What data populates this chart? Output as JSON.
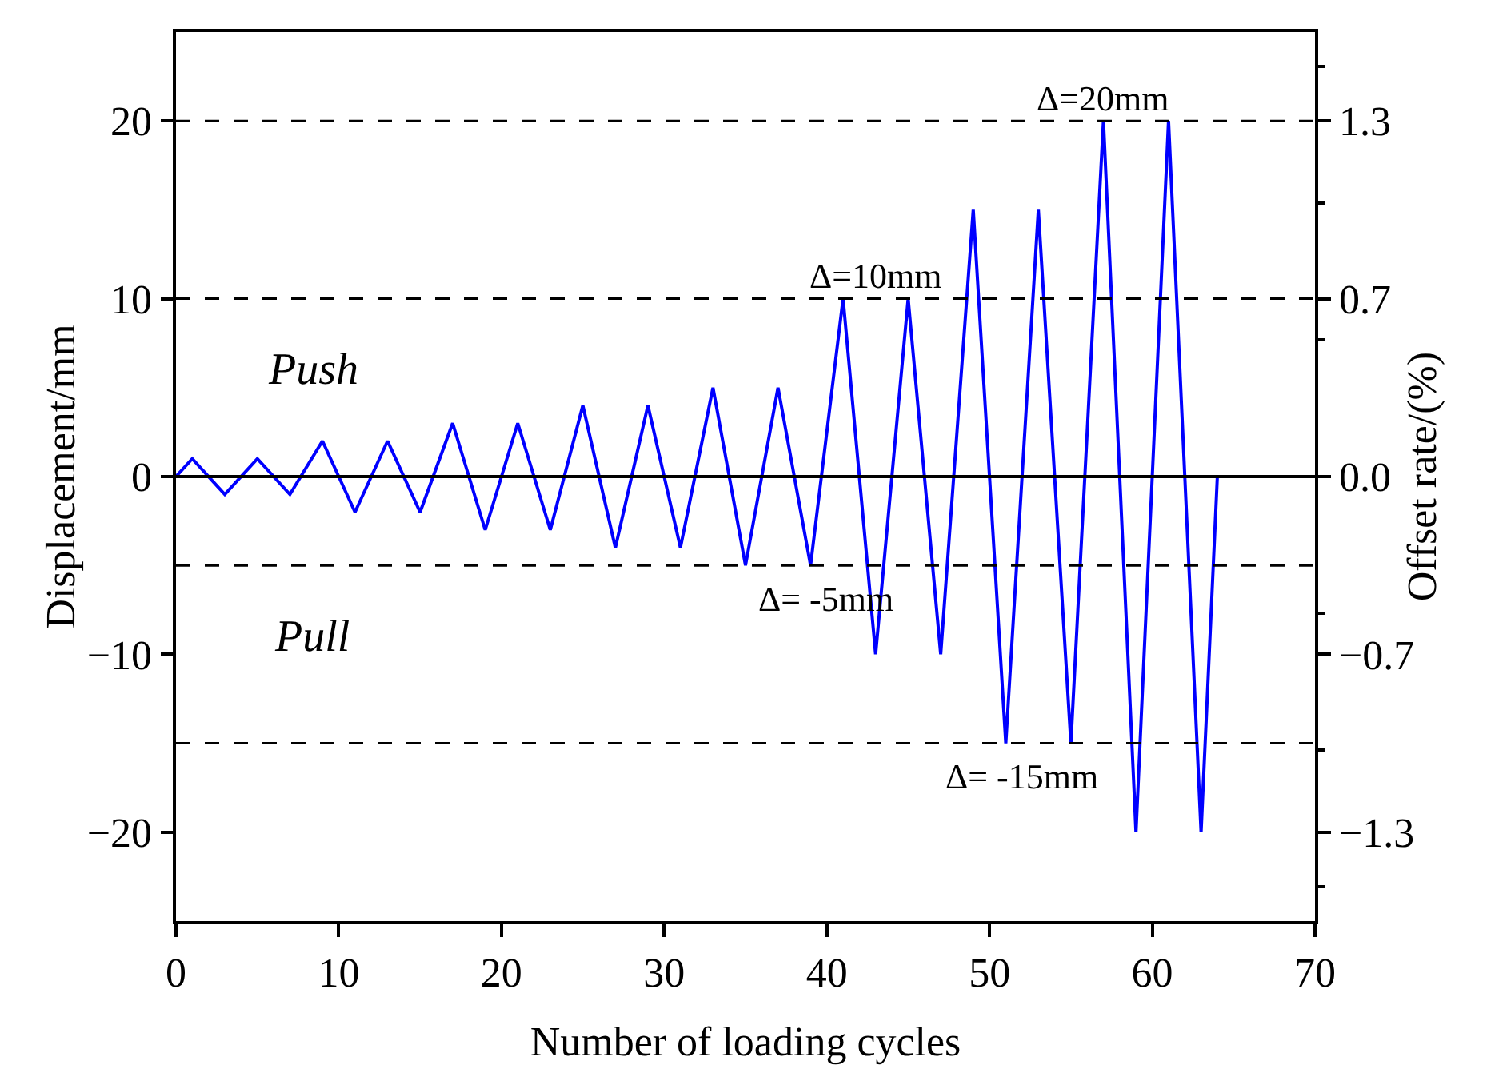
{
  "chart_data": {
    "type": "line",
    "xlabel": "Number of loading cycles",
    "ylabel": "Displacement/mm",
    "y2label": "Offset rate/(%)",
    "x": [
      0,
      1,
      3,
      5,
      7,
      9,
      11,
      13,
      15,
      17,
      19,
      21,
      23,
      25,
      27,
      29,
      31,
      33,
      35,
      37,
      39,
      41,
      43,
      45,
      47,
      49,
      51,
      53,
      55,
      57,
      59,
      61,
      63,
      64
    ],
    "series": [
      {
        "color": "#0000ff",
        "values": [
          0,
          1,
          -1,
          1,
          -1,
          2,
          -2,
          2,
          -2,
          3,
          -3,
          3,
          -3,
          4,
          -4,
          4,
          -4,
          5,
          -5,
          5,
          -5,
          10,
          -10,
          10,
          -10,
          15,
          -15,
          15,
          -15,
          20,
          -20,
          20,
          -20,
          0
        ]
      }
    ],
    "xlim": [
      0,
      70
    ],
    "xticks": [
      0,
      10,
      20,
      30,
      40,
      50,
      60,
      70
    ],
    "ylim": [
      -25,
      25
    ],
    "yticks": [
      {
        "value": -20,
        "label": "−20"
      },
      {
        "value": -10,
        "label": "−10"
      },
      0,
      10,
      20
    ],
    "y2lim": [
      -1.625,
      1.625
    ],
    "y2ticks": [
      {
        "value": -1.3,
        "label": "−1.3"
      },
      {
        "value": -0.65,
        "label": "−0.7"
      },
      {
        "value": 0,
        "label": "0.0"
      },
      {
        "value": 0.65,
        "label": "0.7"
      },
      {
        "value": 1.3,
        "label": "1.3"
      }
    ],
    "ref_lines": [
      {
        "axis": "y",
        "value": 0,
        "line_style": "solid",
        "color": "#000000"
      },
      {
        "axis": "y",
        "value": 20,
        "line_style": "dashed",
        "color": "#000000"
      },
      {
        "axis": "y",
        "value": 10,
        "line_style": "dashed",
        "color": "#000000"
      },
      {
        "axis": "y",
        "value": -5,
        "line_style": "dashed",
        "color": "#000000"
      },
      {
        "axis": "y",
        "value": -15,
        "line_style": "dashed",
        "color": "#000000"
      }
    ],
    "annotations": [
      {
        "text": "Δ=20mm",
        "x": 57,
        "y": 20
      },
      {
        "text": "Δ=10mm",
        "x": 43,
        "y": 10
      },
      {
        "text": "Δ= -5mm",
        "x": 40,
        "y": -5
      },
      {
        "text": "Δ= -15mm",
        "x": 52,
        "y": -15
      },
      "Push",
      "Pull"
    ],
    "grid": false,
    "marker": "none",
    "line_style": "solid"
  }
}
